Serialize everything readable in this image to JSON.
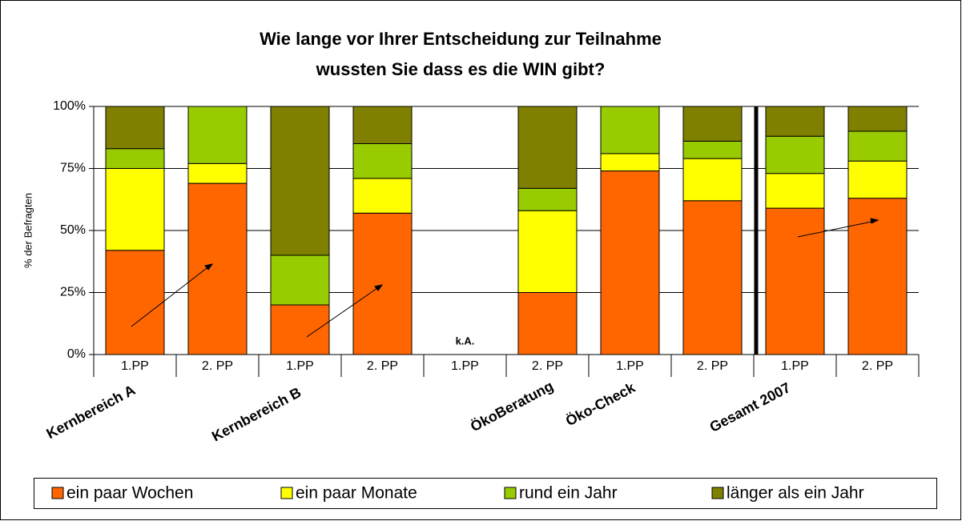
{
  "chart_data": {
    "type": "stacked-bar",
    "title": [
      "Wie lange vor Ihrer Entscheidung zur Teilnahme",
      "wussten Sie dass es die WIN gibt?"
    ],
    "y_label": "% der Befragten",
    "categories": [
      "1.PP",
      "2. PP",
      "1.PP",
      "2. PP",
      "1.PP",
      "2. PP",
      "1.PP",
      "2. PP",
      "1.PP",
      "2. PP"
    ],
    "group_labels": [
      "Kernbereich A",
      "Kernbereich B",
      "ÖkoBeratung",
      "Öko-Check",
      "Gesamt 2007"
    ],
    "annotations": [
      {
        "category": 4,
        "text": "k.A."
      }
    ],
    "series": [
      {
        "name": "ein paar Wochen",
        "color": "#ff6600",
        "values": [
          42,
          69,
          20,
          57,
          null,
          25,
          74,
          62,
          59,
          63
        ]
      },
      {
        "name": "ein paar Monate",
        "color": "#ffff00",
        "values": [
          33,
          8,
          0,
          14,
          null,
          33,
          7,
          17,
          14,
          15
        ]
      },
      {
        "name": "rund ein Jahr",
        "color": "#99cc00",
        "values": [
          8,
          23,
          20,
          14,
          null,
          9,
          19,
          7,
          15,
          12
        ]
      },
      {
        "name": "länger als ein Jahr",
        "color": "#808000",
        "values": [
          17,
          0,
          60,
          15,
          null,
          33,
          0,
          14,
          12,
          10
        ]
      }
    ],
    "ylim": [
      0,
      100
    ],
    "yticks": [
      {
        "value": 0,
        "label": "0%"
      },
      {
        "value": 25,
        "label": "25%"
      },
      {
        "value": 50,
        "label": "50%"
      },
      {
        "value": 75,
        "label": "75%"
      },
      {
        "value": 100,
        "label": "100%"
      }
    ],
    "grid": true,
    "legend": "bottom"
  }
}
